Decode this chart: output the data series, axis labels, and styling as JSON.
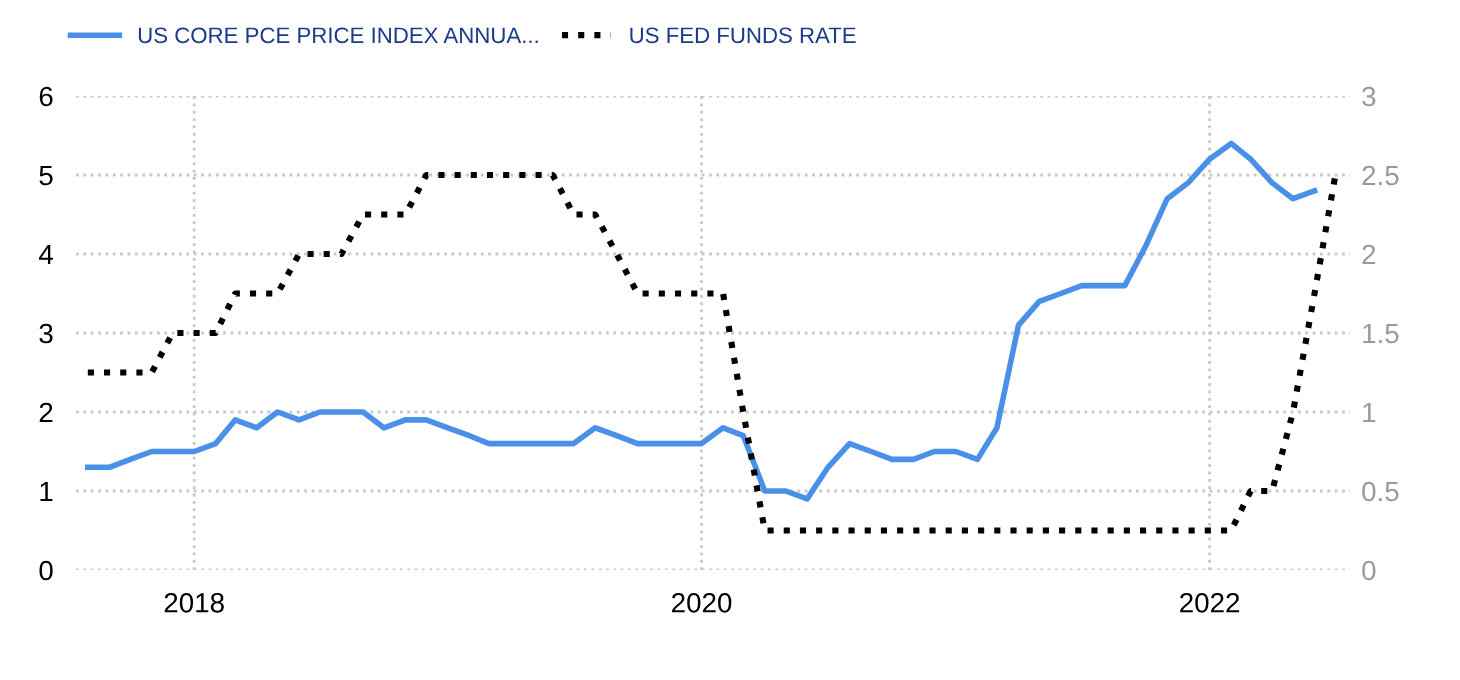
{
  "chart_data": {
    "type": "line",
    "series": [
      {
        "name": "US CORE PCE PRICE INDEX ANNUA...",
        "color": "#4a90e8",
        "line_style": "solid",
        "axis": "y",
        "x": [
          "2017-08",
          "2017-09",
          "2017-10",
          "2017-11",
          "2017-12",
          "2018-01",
          "2018-02",
          "2018-03",
          "2018-04",
          "2018-05",
          "2018-06",
          "2018-07",
          "2018-08",
          "2018-09",
          "2018-10",
          "2018-11",
          "2018-12",
          "2019-01",
          "2019-02",
          "2019-03",
          "2019-04",
          "2019-05",
          "2019-06",
          "2019-07",
          "2019-08",
          "2019-09",
          "2019-10",
          "2019-11",
          "2019-12",
          "2020-01",
          "2020-02",
          "2020-03",
          "2020-04",
          "2020-05",
          "2020-06",
          "2020-07",
          "2020-08",
          "2020-09",
          "2020-10",
          "2020-11",
          "2020-12",
          "2021-01",
          "2021-02",
          "2021-03",
          "2021-04",
          "2021-05",
          "2021-06",
          "2021-07",
          "2021-08",
          "2021-09",
          "2021-10",
          "2021-11",
          "2021-12",
          "2022-01",
          "2022-02",
          "2022-03",
          "2022-04",
          "2022-05",
          "2022-06"
        ],
        "values": [
          1.3,
          1.3,
          1.4,
          1.5,
          1.5,
          1.5,
          1.6,
          1.9,
          1.8,
          2.0,
          1.9,
          2.0,
          2.0,
          2.0,
          1.8,
          1.9,
          1.9,
          1.8,
          1.7,
          1.6,
          1.6,
          1.6,
          1.6,
          1.6,
          1.8,
          1.7,
          1.6,
          1.6,
          1.6,
          1.6,
          1.8,
          1.7,
          1.0,
          1.0,
          0.9,
          1.3,
          1.6,
          1.5,
          1.4,
          1.4,
          1.5,
          1.5,
          1.4,
          1.8,
          3.1,
          3.4,
          3.5,
          3.6,
          3.6,
          3.6,
          4.1,
          4.7,
          4.9,
          5.2,
          5.4,
          5.2,
          4.9,
          4.7,
          4.8
        ]
      },
      {
        "name": "US FED FUNDS RATE",
        "color": "#000000",
        "line_style": "dotted",
        "axis": "y2",
        "x": [
          "2017-08",
          "2017-11",
          "2017-12",
          "2018-02",
          "2018-03",
          "2018-05",
          "2018-06",
          "2018-08",
          "2018-09",
          "2018-11",
          "2018-12",
          "2019-06",
          "2019-07",
          "2019-08",
          "2019-09",
          "2019-10",
          "2020-02",
          "2020-03",
          "2020-04",
          "2022-02",
          "2022-03",
          "2022-04",
          "2022-05",
          "2022-06",
          "2022-07"
        ],
        "values": [
          1.25,
          1.25,
          1.5,
          1.5,
          1.75,
          1.75,
          2.0,
          2.0,
          2.25,
          2.25,
          2.5,
          2.5,
          2.25,
          2.25,
          2.0,
          1.75,
          1.75,
          1.0,
          0.25,
          0.25,
          0.5,
          0.5,
          1.0,
          1.75,
          2.5
        ]
      }
    ],
    "xlim": [
      "2017-07-15",
      "2022-07-22"
    ],
    "xticks": [
      {
        "value": "2018-01-01",
        "label": "2018"
      },
      {
        "value": "2020-01-01",
        "label": "2020"
      },
      {
        "value": "2022-01-01",
        "label": "2022"
      }
    ],
    "ylim": [
      0,
      6
    ],
    "yticks": [
      0,
      1,
      2,
      3,
      4,
      5,
      6
    ],
    "y2lim": [
      0,
      3
    ],
    "y2ticks": [
      0,
      0.5,
      1,
      1.5,
      2,
      2.5,
      3
    ],
    "grid": true,
    "legend": "top left",
    "marker": "none"
  }
}
